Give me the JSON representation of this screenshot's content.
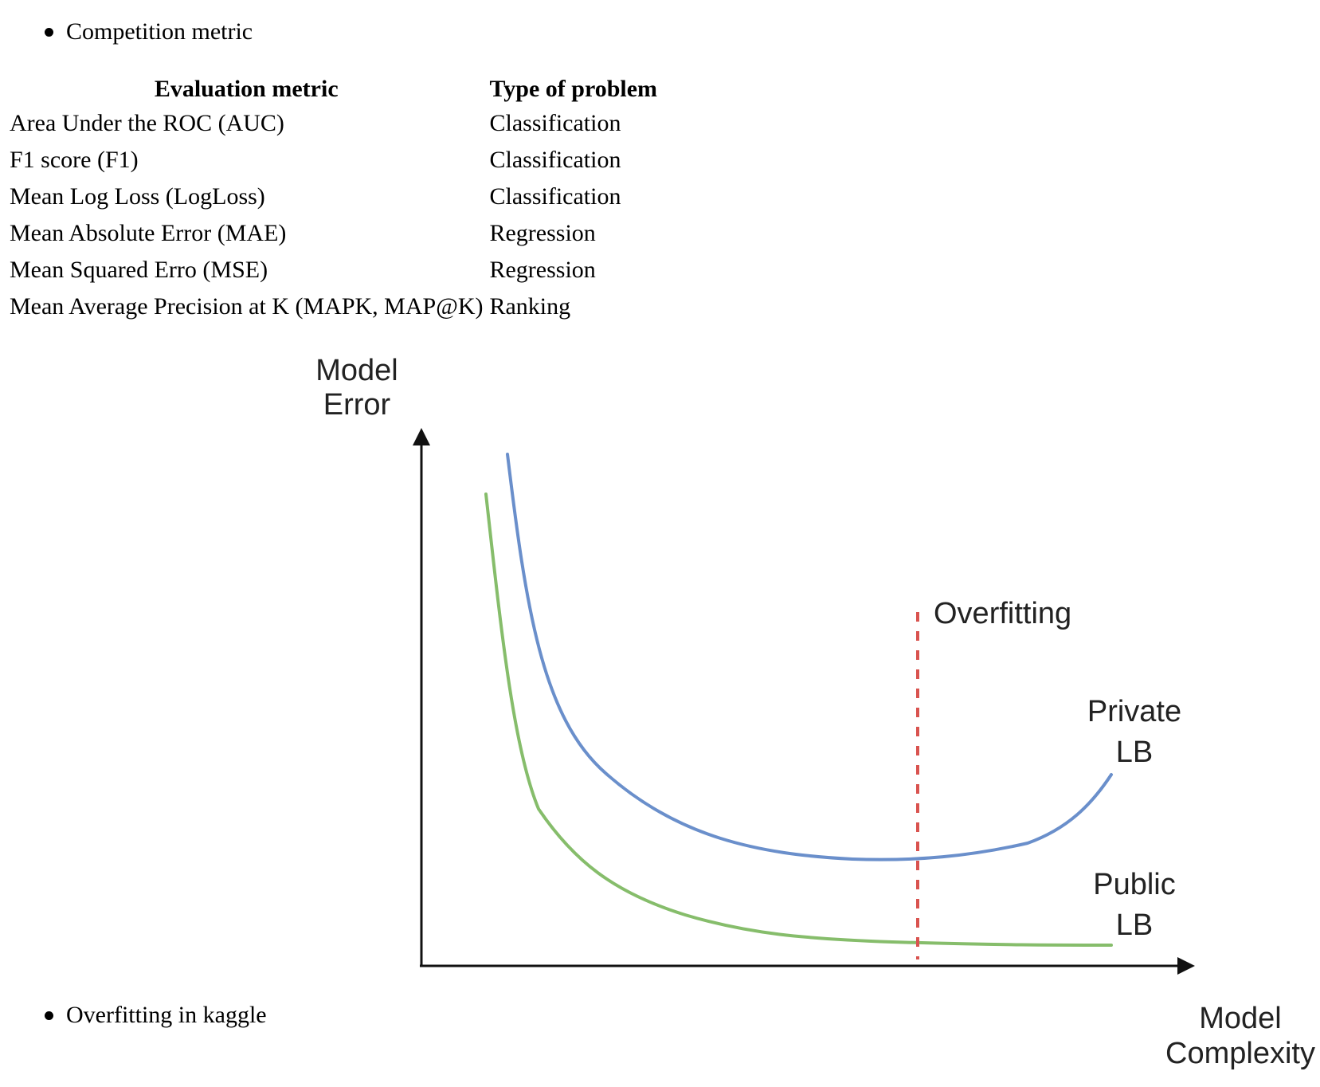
{
  "bullets": {
    "top": "Competition metric",
    "bottom": "Overfitting in kaggle"
  },
  "table": {
    "headers": [
      "Evaluation metric",
      "Type of problem"
    ],
    "rows": [
      [
        "Area Under the ROC (AUC)",
        "Classification"
      ],
      [
        "F1 score (F1)",
        "Classification"
      ],
      [
        "Mean Log Loss (LogLoss)",
        "Classification"
      ],
      [
        "Mean Absolute Error (MAE)",
        "Regression"
      ],
      [
        "Mean Squared Erro (MSE)",
        "Regression"
      ],
      [
        "Mean Average Precision at K (MAPK, MAP@K)",
        "Ranking"
      ]
    ]
  },
  "figure": {
    "y_label_line1": "Model",
    "y_label_line2": "Error",
    "x_label_line1": "Model",
    "x_label_line2": "Complexity",
    "overfitting_label": "Overfitting",
    "private_label_line1": "Private",
    "private_label_line2": "LB",
    "public_label_line1": "Public",
    "public_label_line2": "LB",
    "colors": {
      "private_curve": "#6a8fcb",
      "public_curve": "#86bd6b",
      "overfitting_line": "#d9534f",
      "axes": "#111111"
    }
  }
}
